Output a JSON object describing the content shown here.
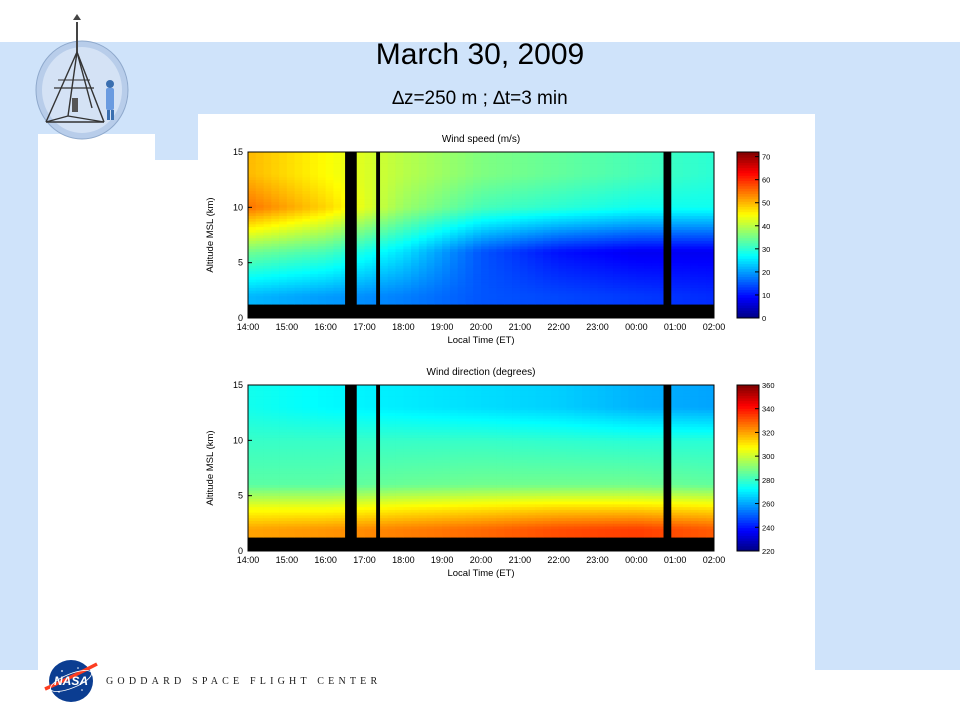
{
  "slide": {
    "title": "March 30, 2009",
    "subtitle": "∆z=250 m ; ∆t=3 min",
    "footer_text": "GODDARD SPACE FLIGHT CENTER",
    "colors": {
      "background_band": "#cfe3fa",
      "text": "#000000"
    },
    "icons": [
      "instrument-logo-icon",
      "nasa-meatball-icon"
    ]
  },
  "chart_data": [
    {
      "type": "heatmap",
      "title": "Wind speed (m/s)",
      "xlabel": "Local Time (ET)",
      "ylabel": "Altitude MSL (km)",
      "x_ticks": [
        "14:00",
        "15:00",
        "16:00",
        "17:00",
        "18:00",
        "19:00",
        "20:00",
        "21:00",
        "22:00",
        "23:00",
        "00:00",
        "01:00",
        "02:00"
      ],
      "y_ticks": [
        0,
        5,
        10,
        15
      ],
      "ylim": [
        0,
        15
      ],
      "colorbar": {
        "ticks": [
          0,
          10,
          20,
          30,
          40,
          50,
          60,
          70
        ],
        "range": [
          0,
          72
        ]
      },
      "resolution": {
        "dz_m": 250,
        "dt_min": 3
      },
      "no_data_gaps_hours": [
        [
          16.5,
          16.8
        ],
        [
          17.3,
          17.4
        ],
        [
          24.7,
          24.9
        ]
      ],
      "min_data_altitude_km": 1.25,
      "summary": {
        "hours": [
          14,
          16,
          18,
          20,
          22,
          24,
          26
        ],
        "altitudes_km": [
          2,
          6,
          10,
          13
        ],
        "values": [
          [
            22,
            35,
            55,
            50
          ],
          [
            20,
            32,
            48,
            45
          ],
          [
            18,
            25,
            38,
            40
          ],
          [
            15,
            15,
            32,
            36
          ],
          [
            14,
            10,
            30,
            34
          ],
          [
            13,
            8,
            28,
            32
          ],
          [
            12,
            8,
            28,
            30
          ]
        ]
      }
    },
    {
      "type": "heatmap",
      "title": "Wind direction (degrees)",
      "xlabel": "Local Time (ET)",
      "ylabel": "Altitude MSL (km)",
      "x_ticks": [
        "14:00",
        "15:00",
        "16:00",
        "17:00",
        "18:00",
        "19:00",
        "20:00",
        "21:00",
        "22:00",
        "23:00",
        "00:00",
        "01:00",
        "02:00"
      ],
      "y_ticks": [
        0,
        5,
        10,
        15
      ],
      "ylim": [
        0,
        15
      ],
      "colorbar": {
        "ticks": [
          220,
          240,
          260,
          280,
          300,
          320,
          340,
          360
        ],
        "range": [
          220,
          360
        ]
      },
      "resolution": {
        "dz_m": 250,
        "dt_min": 3
      },
      "no_data_gaps_hours": [
        [
          16.5,
          16.8
        ],
        [
          17.3,
          17.4
        ],
        [
          24.7,
          24.9
        ]
      ],
      "min_data_altitude_km": 1.25,
      "summary": {
        "hours": [
          14,
          16,
          18,
          20,
          22,
          24,
          26
        ],
        "altitudes_km": [
          2,
          4,
          6,
          10,
          13
        ],
        "values": [
          [
            320,
            305,
            285,
            280,
            275
          ],
          [
            322,
            305,
            285,
            280,
            272
          ],
          [
            325,
            308,
            287,
            280,
            270
          ],
          [
            328,
            310,
            288,
            280,
            268
          ],
          [
            332,
            312,
            288,
            279,
            266
          ],
          [
            334,
            312,
            288,
            278,
            262
          ],
          [
            330,
            310,
            286,
            278,
            260
          ]
        ]
      }
    }
  ]
}
